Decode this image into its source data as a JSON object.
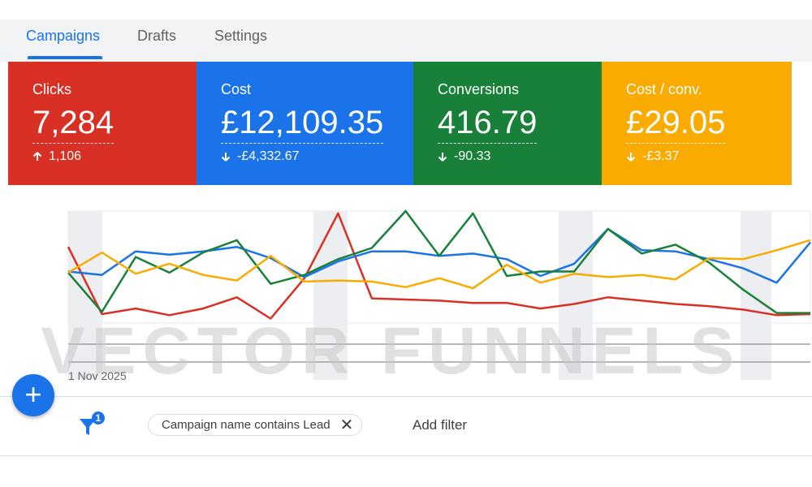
{
  "tabs": [
    {
      "label": "Campaigns",
      "active": true
    },
    {
      "label": "Drafts",
      "active": false
    },
    {
      "label": "Settings",
      "active": false
    }
  ],
  "cards": [
    {
      "label": "Clicks",
      "value": "7,284",
      "delta": "1,106",
      "direction": "up",
      "color": "#d93025"
    },
    {
      "label": "Cost",
      "value": "£12,109.35",
      "delta": "-£4,332.67",
      "direction": "down",
      "color": "#1a73e8"
    },
    {
      "label": "Conversions",
      "value": "416.79",
      "delta": "-90.33",
      "direction": "down",
      "color": "#188038"
    },
    {
      "label": "Cost / conv.",
      "value": "£29.05",
      "delta": "-£3.37",
      "direction": "down",
      "color": "#f9ab00"
    }
  ],
  "chart": {
    "start_date": "1 Nov 2025",
    "series": [
      {
        "color": "#d93025",
        "values": [
          68,
          8,
          13,
          7,
          13,
          23,
          4,
          40,
          98,
          22,
          21,
          20,
          18,
          18,
          13,
          17,
          23,
          20,
          17,
          15,
          12,
          7,
          8
        ]
      },
      {
        "color": "#1a73e8",
        "values": [
          46,
          43,
          64,
          61,
          64,
          68,
          58,
          41,
          55,
          64,
          64,
          60,
          62,
          57,
          42,
          53,
          84,
          65,
          64,
          57,
          49,
          36,
          72
        ]
      },
      {
        "color": "#188038",
        "values": [
          45,
          10,
          59,
          45,
          63,
          74,
          35,
          43,
          57,
          67,
          100,
          60,
          98,
          42,
          46,
          46,
          84,
          62,
          70,
          54,
          30,
          9,
          9
        ]
      },
      {
        "color": "#f9ab00",
        "values": [
          45,
          63,
          44,
          53,
          43,
          38,
          60,
          37,
          38,
          37,
          32,
          40,
          31,
          52,
          36,
          44,
          41,
          43,
          39,
          58,
          57,
          65,
          74
        ]
      }
    ]
  },
  "watermark": "VECTOR FUNNELS",
  "filters": {
    "count": "1",
    "chip_label": "Campaign name contains Lead",
    "add_filter_label": "Add filter"
  },
  "fab_label": "+"
}
